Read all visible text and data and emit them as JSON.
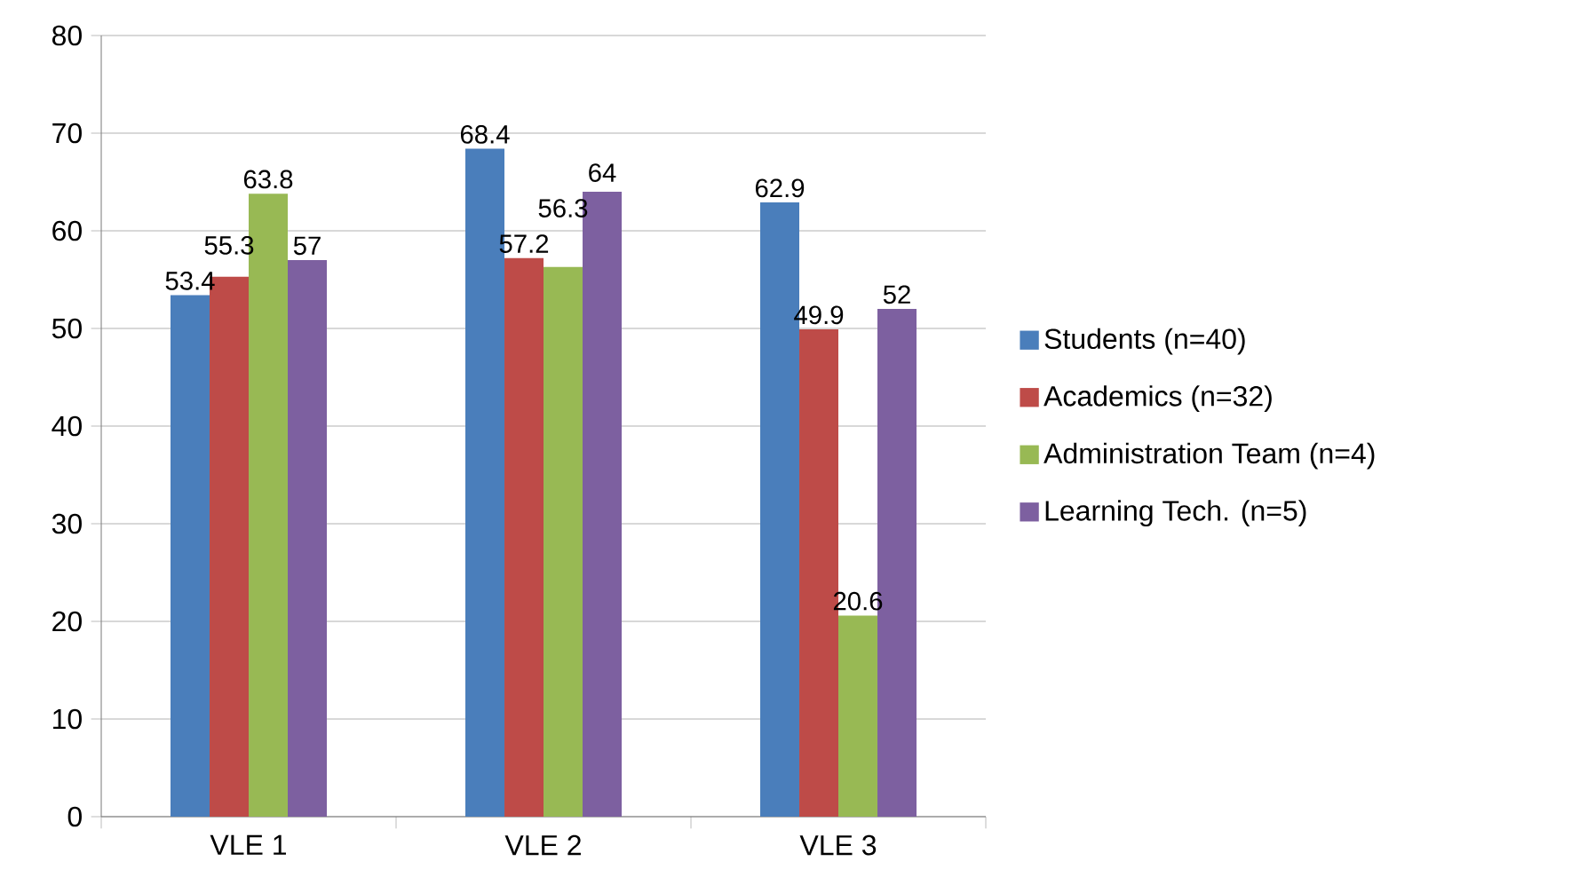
{
  "chart_data": {
    "type": "bar",
    "categories": [
      "VLE 1",
      "VLE 2",
      "VLE 3"
    ],
    "series": [
      {
        "name": "Students (n=40)",
        "color": "#4a7ebb",
        "values": [
          53.4,
          68.4,
          62.9
        ]
      },
      {
        "name": "Academics (n=32)",
        "color": "#be4b48",
        "values": [
          55.3,
          57.2,
          49.9
        ]
      },
      {
        "name": "Administration Team (n=4)",
        "color": "#98b954",
        "values": [
          63.8,
          56.3,
          20.6
        ]
      },
      {
        "name": "Learning Tech. (n=5)",
        "color": "#7d60a0",
        "values": [
          57,
          64,
          52
        ]
      }
    ],
    "ylim": [
      0,
      80
    ],
    "yticks": [
      0,
      10,
      20,
      30,
      40,
      50,
      60,
      70,
      80
    ],
    "grid": "y",
    "legend": "right",
    "data_labels": true
  }
}
